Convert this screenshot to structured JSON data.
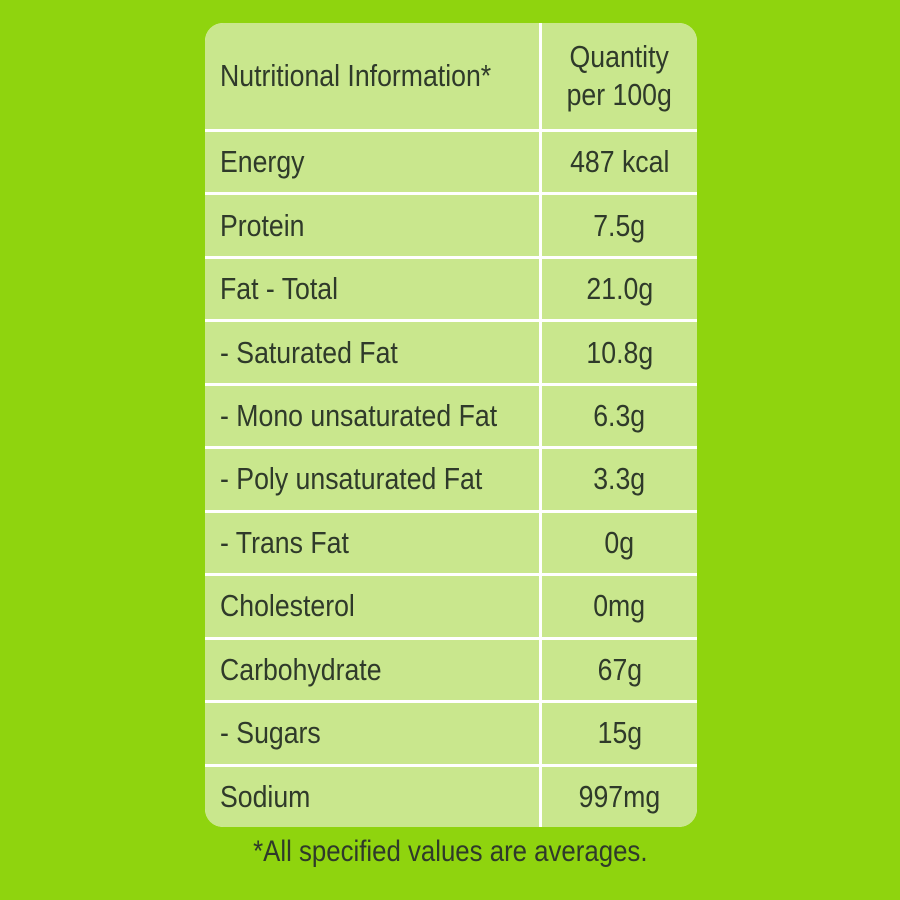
{
  "table": {
    "header": [
      "Nutritional Information*",
      [
        "Quantity",
        "per 100g"
      ]
    ],
    "rows": [
      [
        "Energy",
        "487 kcal"
      ],
      [
        "Protein",
        "7.5g"
      ],
      [
        "Fat - Total",
        "21.0g"
      ],
      [
        "- Saturated Fat",
        "10.8g"
      ],
      [
        "- Mono unsaturated Fat",
        "6.3g"
      ],
      [
        "- Poly unsaturated Fat",
        "3.3g"
      ],
      [
        "- Trans Fat",
        "0g"
      ],
      [
        "Cholesterol",
        "0mg"
      ],
      [
        "Carbohydrate",
        "67g"
      ],
      [
        "- Sugars",
        "15g"
      ],
      [
        "Sodium",
        "997mg"
      ]
    ]
  },
  "footnote": "*All specified values are averages."
}
